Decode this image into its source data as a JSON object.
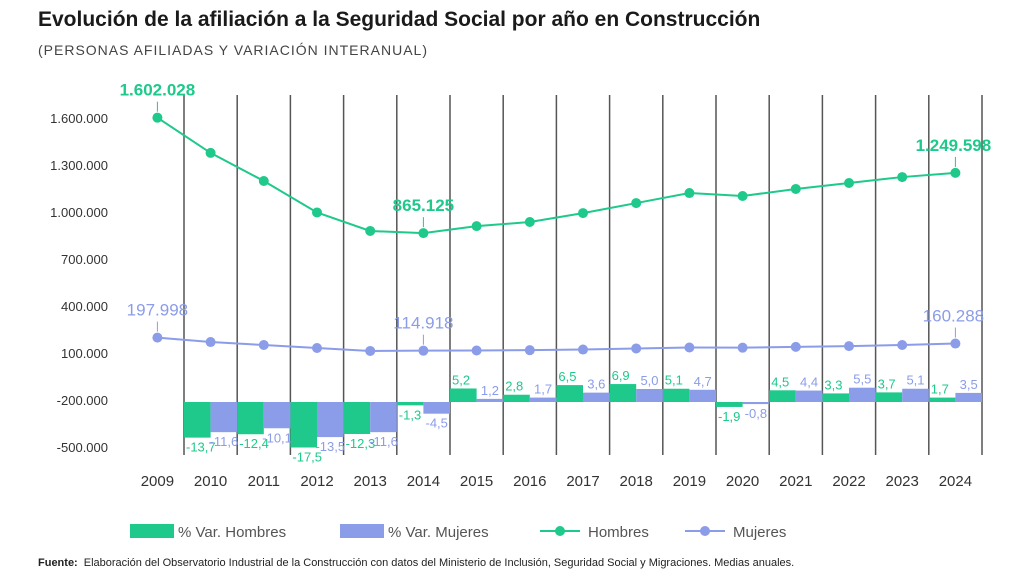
{
  "title": "Evolución de la afiliación a la Seguridad Social por año en Construcción",
  "subtitle": "(PERSONAS AFILIADAS Y VARIACIÓN INTERANUAL)",
  "footer": {
    "label": "Fuente:",
    "text": "Elaboración del Observatorio Industrial de la Construcción con datos del Ministerio de Inclusión, Seguridad Social y Migraciones. Medias anuales."
  },
  "chart_data": {
    "type": "bar+line",
    "categories": [
      "2009",
      "2010",
      "2011",
      "2012",
      "2013",
      "2014",
      "2015",
      "2016",
      "2017",
      "2018",
      "2019",
      "2020",
      "2021",
      "2022",
      "2023",
      "2024"
    ],
    "y_ticks": [
      "1.600.000",
      "1.300.000",
      "1.000.000",
      "700.000",
      "400.000",
      "100.000",
      "-200.000",
      "-500.000"
    ],
    "y_tick_values": [
      1600000,
      1300000,
      1000000,
      700000,
      400000,
      100000,
      -200000,
      -500000
    ],
    "series": [
      {
        "name": "% Var. Hombres",
        "type": "bar",
        "color": "#1ec98b",
        "values": [
          null,
          -13.7,
          -12.4,
          -17.5,
          -12.3,
          -1.3,
          5.2,
          2.8,
          6.5,
          6.9,
          5.1,
          -1.9,
          4.5,
          3.3,
          3.7,
          1.7
        ],
        "labels": [
          null,
          "-13,7",
          "-12,4",
          "-17,5",
          "-12,3",
          "-1,3",
          "5,2",
          "2,8",
          "6,5",
          "6,9",
          "5,1",
          "-1,9",
          "4,5",
          "3,3",
          "3,7",
          "1,7"
        ]
      },
      {
        "name": "% Var. Mujeres",
        "type": "bar",
        "color": "#8b9ce9",
        "values": [
          null,
          -11.6,
          -10.1,
          -13.5,
          -11.6,
          -4.5,
          1.2,
          1.7,
          3.6,
          5.0,
          4.7,
          -0.8,
          4.4,
          5.5,
          5.1,
          3.5
        ],
        "labels": [
          null,
          "-11,6",
          "-10,1",
          "-13,5",
          "-11,6",
          "-4,5",
          "1,2",
          "1,7",
          "3,6",
          "5,0",
          "4,7",
          "-0,8",
          "4,4",
          "5,5",
          "5,1",
          "3,5"
        ]
      },
      {
        "name": "Hombres",
        "type": "line",
        "color": "#1ec98b",
        "values": [
          1602028,
          1377000,
          1198000,
          997000,
          879000,
          865125,
          910000,
          936000,
          993000,
          1057000,
          1121000,
          1102000,
          1147000,
          1185000,
          1223000,
          1249598
        ],
        "annotations": [
          {
            "index": 0,
            "label": "1.602.028"
          },
          {
            "index": 5,
            "label": "865.125"
          },
          {
            "index": 15,
            "label": "1.249.598"
          }
        ]
      },
      {
        "name": "Mujeres",
        "type": "line",
        "color": "#8b9ce9",
        "values": [
          197998,
          170000,
          151000,
          132000,
          113000,
          114918,
          116000,
          118000,
          122000,
          129000,
          135000,
          134000,
          139000,
          144000,
          151000,
          160288
        ],
        "annotations": [
          {
            "index": 0,
            "label": "197.998"
          },
          {
            "index": 5,
            "label": "114.918"
          },
          {
            "index": 15,
            "label": "160.288"
          }
        ]
      }
    ],
    "legend_position": "bottom",
    "grid": false
  }
}
